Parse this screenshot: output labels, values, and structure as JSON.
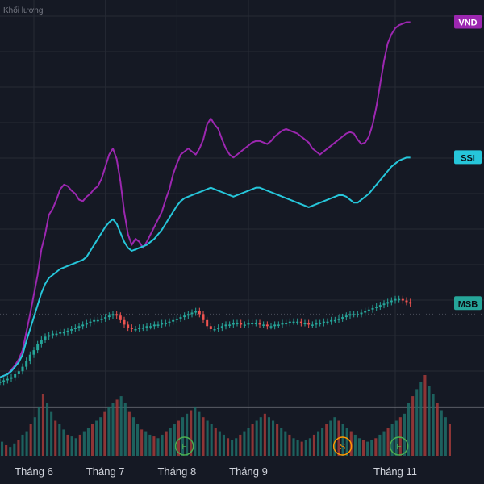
{
  "chart_data": {
    "type": "line",
    "top_label": "Khối lượng",
    "x_tick_labels": [
      "Tháng 6",
      "Tháng 7",
      "Tháng 8",
      "Tháng 9",
      "Tháng 11"
    ],
    "x_tick_positions": [
      9,
      28,
      47,
      66,
      105
    ],
    "x_range": [
      0,
      120
    ],
    "y_range": [
      -20,
      240
    ],
    "series": [
      {
        "name": "VND",
        "color": "#9c27b0",
        "values": [
          0,
          1,
          2,
          5,
          8,
          12,
          18,
          30,
          42,
          55,
          68,
          85,
          95,
          108,
          112,
          118,
          125,
          128,
          127,
          124,
          122,
          118,
          117,
          120,
          122,
          125,
          127,
          132,
          140,
          148,
          152,
          145,
          130,
          110,
          95,
          88,
          92,
          90,
          86,
          90,
          95,
          100,
          105,
          110,
          118,
          125,
          135,
          142,
          148,
          150,
          152,
          150,
          148,
          152,
          158,
          168,
          172,
          168,
          165,
          158,
          152,
          148,
          146,
          148,
          150,
          152,
          154,
          156,
          157,
          157,
          156,
          155,
          157,
          160,
          162,
          164,
          165,
          164,
          163,
          162,
          160,
          158,
          156,
          152,
          150,
          148,
          150,
          152,
          154,
          156,
          158,
          160,
          162,
          163,
          162,
          158,
          155,
          156,
          160,
          168,
          180,
          195,
          210,
          222,
          228,
          232,
          234,
          235,
          236,
          236
        ],
        "label_text": "VND"
      },
      {
        "name": "SSI",
        "color": "#26c6da",
        "values": [
          0,
          1,
          2,
          4,
          7,
          10,
          15,
          24,
          32,
          40,
          48,
          56,
          62,
          66,
          68,
          70,
          72,
          73,
          74,
          75,
          76,
          77,
          78,
          80,
          84,
          88,
          92,
          96,
          100,
          103,
          105,
          102,
          96,
          90,
          86,
          84,
          85,
          86,
          87,
          88,
          90,
          92,
          95,
          98,
          102,
          106,
          110,
          114,
          117,
          119,
          120,
          121,
          122,
          123,
          124,
          125,
          126,
          125,
          124,
          123,
          122,
          121,
          120,
          121,
          122,
          123,
          124,
          125,
          126,
          126,
          125,
          124,
          123,
          122,
          121,
          120,
          119,
          118,
          117,
          116,
          115,
          114,
          113,
          114,
          115,
          116,
          117,
          118,
          119,
          120,
          121,
          121,
          120,
          118,
          116,
          116,
          118,
          120,
          122,
          125,
          128,
          131,
          134,
          137,
          140,
          142,
          144,
          145,
          146,
          146
        ],
        "label_text": "SSI"
      },
      {
        "name": "MSB",
        "color": "#26a69a",
        "values": [
          -3,
          -2,
          -1,
          0,
          2,
          4,
          7,
          11,
          15,
          18,
          22,
          25,
          27,
          28,
          29,
          29,
          30,
          30,
          31,
          32,
          33,
          34,
          35,
          36,
          37,
          38,
          38,
          39,
          40,
          41,
          42,
          41,
          38,
          35,
          33,
          32,
          32,
          33,
          33,
          34,
          34,
          35,
          35,
          36,
          36,
          37,
          38,
          39,
          40,
          41,
          42,
          43,
          44,
          42,
          38,
          34,
          32,
          32,
          33,
          34,
          35,
          35,
          36,
          36,
          35,
          35,
          36,
          36,
          36,
          35,
          35,
          34,
          34,
          35,
          35,
          36,
          36,
          37,
          37,
          37,
          36,
          36,
          35,
          35,
          36,
          36,
          37,
          37,
          38,
          38,
          39,
          40,
          41,
          42,
          42,
          42,
          43,
          44,
          45,
          46,
          47,
          48,
          49,
          50,
          51,
          52,
          52,
          51,
          50,
          49
        ],
        "label_text": "MSB"
      }
    ],
    "volume": [
      8,
      6,
      5,
      7,
      9,
      12,
      14,
      18,
      22,
      28,
      35,
      30,
      25,
      20,
      18,
      15,
      12,
      11,
      10,
      12,
      14,
      16,
      18,
      20,
      22,
      25,
      28,
      30,
      32,
      34,
      30,
      25,
      22,
      18,
      15,
      14,
      12,
      11,
      10,
      12,
      14,
      16,
      18,
      20,
      22,
      24,
      26,
      28,
      25,
      22,
      20,
      18,
      16,
      14,
      12,
      10,
      9,
      10,
      12,
      14,
      16,
      18,
      20,
      22,
      24,
      22,
      20,
      18,
      16,
      14,
      12,
      10,
      9,
      8,
      9,
      10,
      12,
      14,
      16,
      18,
      20,
      22,
      20,
      18,
      16,
      14,
      12,
      10,
      9,
      8,
      9,
      10,
      12,
      14,
      16,
      18,
      20,
      22,
      24,
      30,
      34,
      38,
      42,
      46,
      40,
      35,
      30,
      26,
      22,
      18
    ],
    "events": [
      {
        "label": "E",
        "color": "#4caf50"
      },
      {
        "label": "S",
        "color": "#ff9800"
      },
      {
        "label": "E",
        "color": "#4caf50"
      }
    ],
    "event_positions": [
      49,
      91,
      106
    ],
    "grid": true,
    "legend": "right-edge tags"
  },
  "colors": {
    "background": "#151924",
    "grid": "#262a35",
    "up": "#26a69a",
    "down": "#ef5350"
  }
}
